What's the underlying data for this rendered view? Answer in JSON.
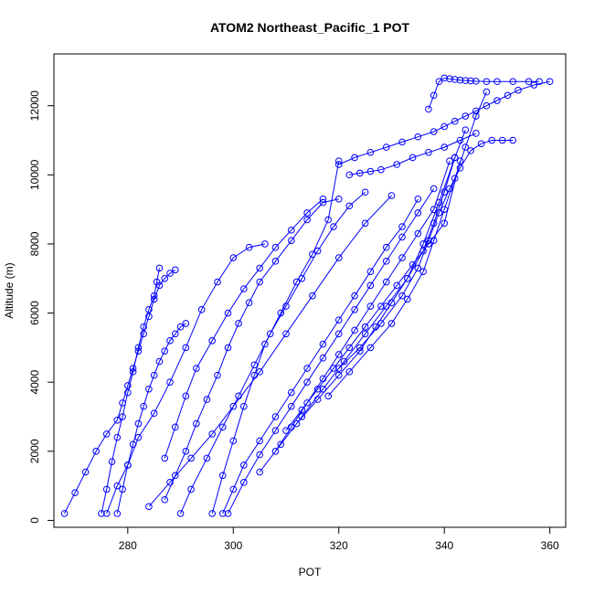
{
  "chart_data": {
    "type": "line",
    "title": "ATOM2 Northeast_Pacific_1 POT",
    "xlabel": "POT",
    "ylabel": "Altitude (m)",
    "xlim": [
      266,
      363
    ],
    "ylim": [
      -200,
      13500
    ],
    "x_ticks": [
      280,
      300,
      320,
      340,
      360
    ],
    "y_ticks": [
      0,
      2000,
      4000,
      6000,
      8000,
      10000,
      12000
    ],
    "grid": false,
    "legend": "none",
    "marker": "open-circle",
    "series_color": "#0000ff",
    "series": [
      {
        "x": [
          275,
          276,
          277,
          278,
          279,
          280,
          281,
          282,
          283,
          284,
          285,
          285.5,
          286
        ],
        "y": [
          200,
          900,
          1700,
          2400,
          3000,
          3700,
          4300,
          5000,
          5600,
          6100,
          6500,
          6900,
          7300
        ]
      },
      {
        "x": [
          268,
          270,
          272,
          274,
          276,
          278,
          279,
          280,
          281,
          282,
          283,
          284,
          285,
          286,
          287,
          288,
          289
        ],
        "y": [
          200,
          800,
          1400,
          2000,
          2500,
          2900,
          3400,
          3900,
          4400,
          4900,
          5400,
          5900,
          6400,
          6800,
          7000,
          7150,
          7250
        ]
      },
      {
        "x": [
          278,
          279,
          280,
          281,
          282,
          283,
          284,
          285,
          286,
          287,
          288,
          289,
          290,
          291
        ],
        "y": [
          200,
          900,
          1600,
          2200,
          2800,
          3300,
          3800,
          4200,
          4600,
          4900,
          5200,
          5400,
          5600,
          5700
        ]
      },
      {
        "x": [
          276,
          278,
          280,
          282,
          285,
          288,
          291,
          294,
          297,
          300,
          303,
          306
        ],
        "y": [
          200,
          1000,
          1600,
          2400,
          3100,
          4000,
          5000,
          6100,
          6900,
          7600,
          7900,
          8000
        ]
      },
      {
        "x": [
          287,
          289,
          291,
          293,
          295,
          297,
          299,
          301,
          303,
          305,
          308,
          311,
          314,
          317,
          320
        ],
        "y": [
          600,
          1300,
          2000,
          2800,
          3500,
          4200,
          5000,
          5700,
          6300,
          6900,
          7500,
          8100,
          8700,
          9200,
          9300
        ]
      },
      {
        "x": [
          290,
          292,
          295,
          298,
          301,
          304,
          307,
          310,
          313,
          316,
          319,
          322,
          325
        ],
        "y": [
          200,
          900,
          1800,
          2700,
          3600,
          4500,
          5400,
          6200,
          7000,
          7800,
          8500,
          9100,
          9500
        ]
      },
      {
        "x": [
          287,
          289,
          291,
          293,
          296,
          299,
          302,
          305,
          308,
          311,
          314,
          317
        ],
        "y": [
          1800,
          2700,
          3600,
          4400,
          5200,
          6000,
          6700,
          7300,
          7900,
          8400,
          8900,
          9300
        ]
      },
      {
        "x": [
          296,
          298,
          300,
          302,
          304,
          306,
          309,
          312,
          315,
          318,
          320
        ],
        "y": [
          200,
          1300,
          2300,
          3300,
          4200,
          5100,
          6000,
          6900,
          7700,
          8700,
          10400
        ]
      },
      {
        "x": [
          284,
          288,
          292,
          296,
          300,
          305,
          310,
          315,
          320,
          325,
          330
        ],
        "y": [
          400,
          1100,
          1800,
          2500,
          3300,
          4300,
          5400,
          6500,
          7600,
          8600,
          9400
        ]
      },
      {
        "x": [
          298,
          300,
          302,
          305,
          308,
          311,
          314,
          317,
          320,
          323,
          326,
          329,
          332,
          335
        ],
        "y": [
          200,
          900,
          1600,
          2300,
          3000,
          3700,
          4400,
          5100,
          5800,
          6500,
          7200,
          7900,
          8500,
          9300
        ]
      },
      {
        "x": [
          299,
          302,
          305,
          308,
          311,
          314,
          317,
          320,
          323,
          326,
          329,
          332,
          335,
          338
        ],
        "y": [
          200,
          1100,
          1900,
          2600,
          3300,
          4000,
          4700,
          5400,
          6100,
          6800,
          7500,
          8200,
          8900,
          9600
        ]
      },
      {
        "x": [
          308,
          311,
          314,
          317,
          320,
          323,
          326,
          329,
          332,
          335,
          338,
          341
        ],
        "y": [
          2000,
          2700,
          3400,
          4100,
          4800,
          5500,
          6200,
          6900,
          7600,
          8300,
          9000,
          10400
        ]
      },
      {
        "x": [
          310,
          313,
          316,
          319,
          322,
          325,
          328,
          331,
          334,
          337,
          340,
          343
        ],
        "y": [
          2600,
          3200,
          3800,
          4400,
          5000,
          5600,
          6200,
          6800,
          7400,
          8000,
          8600,
          10400
        ]
      },
      {
        "x": [
          305,
          309,
          313,
          317,
          321,
          325,
          329,
          333,
          336,
          339,
          342
        ],
        "y": [
          1400,
          2200,
          3000,
          3800,
          4600,
          5400,
          6200,
          7000,
          8000,
          9200,
          10500
        ]
      },
      {
        "x": [
          312,
          316,
          320,
          324,
          327,
          330,
          333,
          336,
          338,
          340,
          342,
          344
        ],
        "y": [
          2800,
          3500,
          4200,
          4900,
          5600,
          6300,
          7000,
          7800,
          8600,
          9500,
          10500,
          11300
        ]
      },
      {
        "x": [
          318,
          322,
          326,
          330,
          333,
          336,
          338,
          340,
          342,
          344,
          346,
          348
        ],
        "y": [
          3600,
          4300,
          5000,
          5700,
          6400,
          7200,
          8100,
          9000,
          9900,
          10800,
          11700,
          12400
        ]
      },
      {
        "x": [
          320,
          324,
          328,
          332,
          335,
          337,
          339,
          341,
          343,
          345,
          347,
          349,
          351,
          353
        ],
        "y": [
          4400,
          5000,
          5700,
          6500,
          7300,
          8100,
          8900,
          9600,
          10200,
          10700,
          10900,
          11000,
          11000,
          11000
        ]
      },
      {
        "x": [
          320,
          323,
          326,
          329,
          332,
          335,
          338,
          340,
          342,
          344,
          346,
          348,
          350,
          352,
          354,
          357,
          360
        ],
        "y": [
          10300,
          10500,
          10650,
          10800,
          10950,
          11100,
          11250,
          11400,
          11550,
          11700,
          11850,
          12000,
          12150,
          12300,
          12450,
          12600,
          12700
        ]
      },
      {
        "x": [
          337,
          338,
          339,
          340,
          341,
          342,
          343,
          344,
          345,
          346,
          348,
          350,
          353,
          356,
          358
        ],
        "y": [
          11900,
          12300,
          12700,
          12800,
          12780,
          12760,
          12740,
          12730,
          12720,
          12710,
          12700,
          12700,
          12700,
          12700,
          12700
        ]
      },
      {
        "x": [
          322,
          324,
          326,
          328,
          331,
          334,
          337,
          340,
          343,
          346
        ],
        "y": [
          10000,
          10050,
          10100,
          10150,
          10300,
          10500,
          10650,
          10800,
          11000,
          11200
        ]
      }
    ]
  }
}
